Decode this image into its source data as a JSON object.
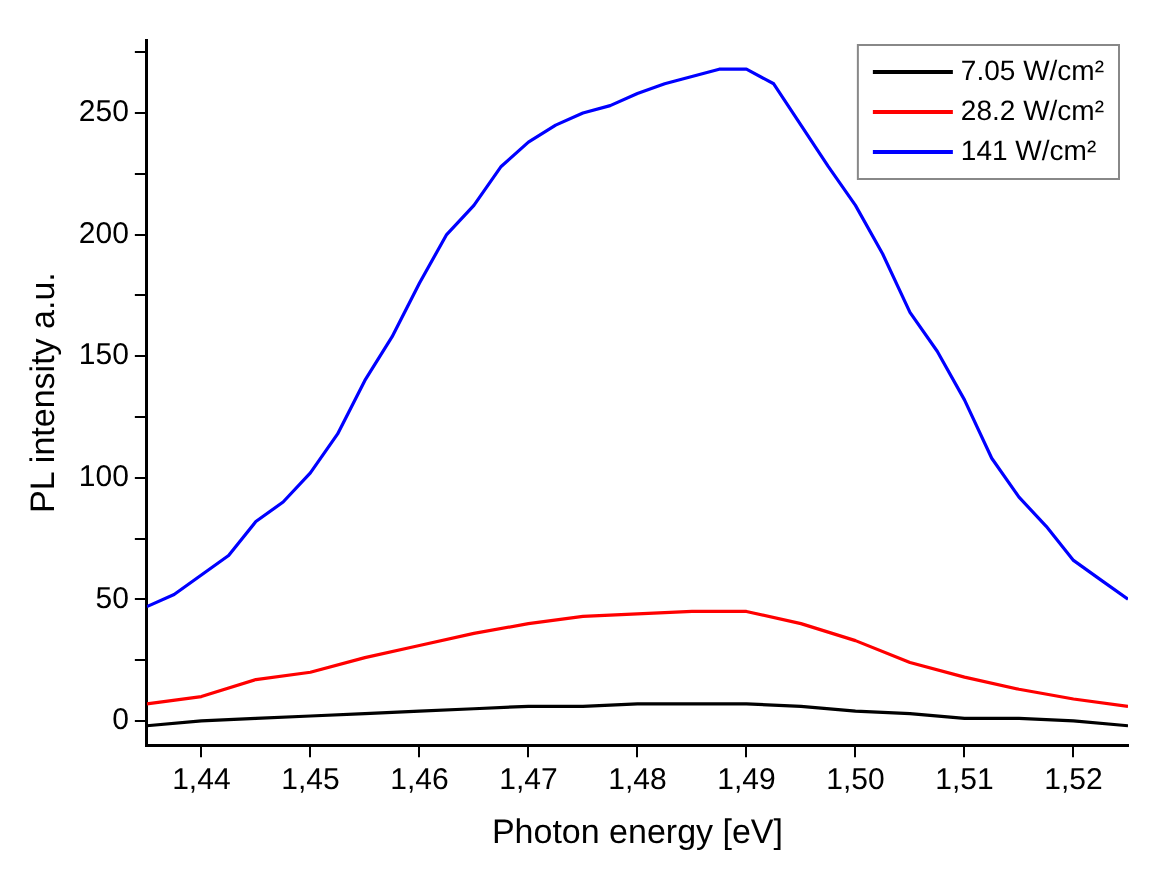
{
  "chart_data": {
    "type": "line",
    "xlabel": "Photon energy [eV]",
    "ylabel": "PL intensity a.u.",
    "xlim": [
      1.435,
      1.525
    ],
    "ylim": [
      -10,
      280
    ],
    "xticks": [
      {
        "value": 1.44,
        "label": "1,44"
      },
      {
        "value": 1.45,
        "label": "1,45"
      },
      {
        "value": 1.46,
        "label": "1,46"
      },
      {
        "value": 1.47,
        "label": "1,47"
      },
      {
        "value": 1.48,
        "label": "1,48"
      },
      {
        "value": 1.49,
        "label": "1,49"
      },
      {
        "value": 1.5,
        "label": "1,50"
      },
      {
        "value": 1.51,
        "label": "1,51"
      },
      {
        "value": 1.52,
        "label": "1,52"
      }
    ],
    "yticks": [
      0,
      {
        "value": 25,
        "label": null
      },
      50,
      {
        "value": 75,
        "label": null
      },
      100,
      {
        "value": 125,
        "label": null
      },
      150,
      {
        "value": 175,
        "label": null
      },
      200,
      {
        "value": 225,
        "label": null
      },
      250,
      {
        "value": 275,
        "label": null
      }
    ],
    "grid": false,
    "legend": "top right",
    "marker": "none",
    "line_style": "solid",
    "series": [
      {
        "name": "7.05 W/cm²",
        "color": "#000000",
        "x": [
          1.435,
          1.44,
          1.445,
          1.45,
          1.455,
          1.46,
          1.465,
          1.47,
          1.475,
          1.48,
          1.485,
          1.49,
          1.495,
          1.5,
          1.505,
          1.51,
          1.515,
          1.52,
          1.525
        ],
        "values": [
          -2,
          0,
          1,
          2,
          3,
          4,
          5,
          6,
          6,
          7,
          7,
          7,
          6,
          4,
          3,
          1,
          1,
          0,
          -2
        ]
      },
      {
        "name": "28.2 W/cm²",
        "color": "#ff0000",
        "x": [
          1.435,
          1.44,
          1.445,
          1.45,
          1.455,
          1.46,
          1.465,
          1.47,
          1.475,
          1.48,
          1.485,
          1.49,
          1.495,
          1.5,
          1.505,
          1.51,
          1.515,
          1.52,
          1.525
        ],
        "values": [
          7,
          10,
          17,
          20,
          26,
          31,
          36,
          40,
          43,
          44,
          45,
          45,
          40,
          33,
          24,
          18,
          13,
          9,
          6
        ]
      },
      {
        "name": "141 W/cm²",
        "color": "#0000ff",
        "x": [
          1.435,
          1.4375,
          1.44,
          1.4425,
          1.445,
          1.4475,
          1.45,
          1.4525,
          1.455,
          1.4575,
          1.46,
          1.4625,
          1.465,
          1.4675,
          1.47,
          1.4725,
          1.475,
          1.4775,
          1.48,
          1.4825,
          1.485,
          1.4875,
          1.49,
          1.4925,
          1.495,
          1.4975,
          1.5,
          1.5025,
          1.505,
          1.5075,
          1.51,
          1.5125,
          1.515,
          1.5175,
          1.52,
          1.5225,
          1.525
        ],
        "values": [
          47,
          52,
          60,
          68,
          82,
          90,
          102,
          118,
          140,
          158,
          180,
          200,
          212,
          228,
          238,
          245,
          250,
          253,
          258,
          262,
          265,
          268,
          268,
          262,
          245,
          228,
          212,
          192,
          168,
          152,
          132,
          108,
          92,
          80,
          66,
          58,
          50
        ]
      }
    ]
  }
}
